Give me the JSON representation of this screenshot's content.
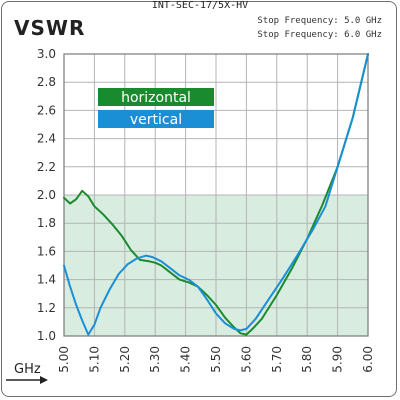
{
  "model_label": "INT-SEC-17/5X-HV",
  "stop_frequencies": [
    "Stop Frequency: 5.0 GHz",
    "Stop Frequency: 6.0 GHz"
  ],
  "colors": {
    "horizontal": "#1a8a2e",
    "vertical": "#1b8fd6",
    "band_fill": "#d9ece0",
    "grid": "#b4b4b4"
  },
  "chart_data": {
    "type": "line",
    "title": "VSWR",
    "xlabel": "GHz",
    "ylabel": "",
    "xlim": [
      5.0,
      6.0
    ],
    "ylim": [
      1.0,
      3.0
    ],
    "x_ticks": [
      "5.00",
      "5.10",
      "5.20",
      "5.30",
      "5.40",
      "5.50",
      "5.60",
      "5.70",
      "5.80",
      "5.90",
      "6.00"
    ],
    "y_ticks": [
      "1.0",
      "1.2",
      "1.4",
      "1.6",
      "1.8",
      "2.0",
      "2.2",
      "2.4",
      "2.6",
      "2.8",
      "3.0"
    ],
    "grid": true,
    "shaded_band": [
      1.0,
      2.0
    ],
    "legend": [
      "horizontal",
      "vertical"
    ],
    "series": [
      {
        "name": "horizontal",
        "x": [
          5.0,
          5.02,
          5.04,
          5.06,
          5.08,
          5.1,
          5.13,
          5.16,
          5.19,
          5.22,
          5.25,
          5.28,
          5.3,
          5.32,
          5.35,
          5.38,
          5.41,
          5.44,
          5.47,
          5.5,
          5.53,
          5.56,
          5.58,
          5.6,
          5.62,
          5.65,
          5.7,
          5.75,
          5.8,
          5.85,
          5.9,
          5.95,
          6.0
        ],
        "y": [
          1.98,
          1.94,
          1.97,
          2.03,
          1.99,
          1.92,
          1.86,
          1.79,
          1.71,
          1.61,
          1.54,
          1.53,
          1.52,
          1.5,
          1.45,
          1.4,
          1.38,
          1.35,
          1.29,
          1.22,
          1.13,
          1.06,
          1.02,
          1.01,
          1.05,
          1.12,
          1.29,
          1.48,
          1.69,
          1.93,
          2.2,
          2.55,
          3.0
        ]
      },
      {
        "name": "vertical",
        "x": [
          5.0,
          5.02,
          5.04,
          5.06,
          5.08,
          5.1,
          5.12,
          5.15,
          5.18,
          5.21,
          5.24,
          5.27,
          5.29,
          5.32,
          5.35,
          5.38,
          5.41,
          5.44,
          5.47,
          5.5,
          5.53,
          5.56,
          5.58,
          5.6,
          5.63,
          5.67,
          5.72,
          5.77,
          5.82,
          5.86,
          5.9,
          5.95,
          6.0
        ],
        "y": [
          1.5,
          1.35,
          1.22,
          1.11,
          1.01,
          1.08,
          1.2,
          1.33,
          1.44,
          1.51,
          1.55,
          1.57,
          1.56,
          1.53,
          1.48,
          1.43,
          1.4,
          1.35,
          1.26,
          1.16,
          1.09,
          1.05,
          1.04,
          1.05,
          1.12,
          1.25,
          1.41,
          1.58,
          1.76,
          1.92,
          2.2,
          2.55,
          3.0
        ]
      }
    ]
  }
}
